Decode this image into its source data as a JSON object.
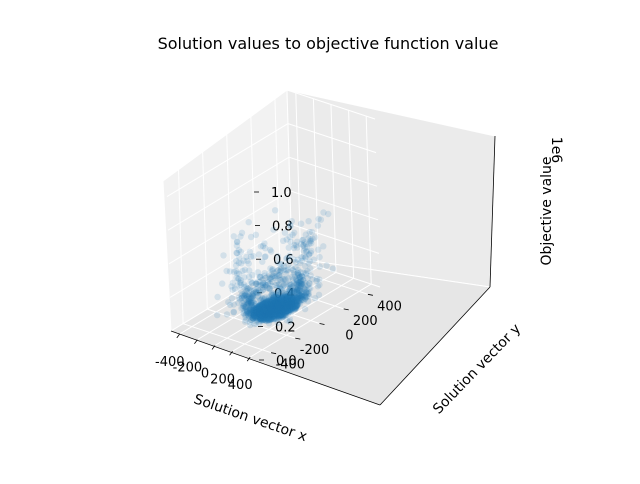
{
  "chart_data": {
    "type": "scatter",
    "projection": "3d",
    "title": "Solution values to objective function value",
    "xlabel": "Solution vector x",
    "ylabel": "Solution vector y",
    "zlabel": "Objective value",
    "z_offset_text": "1e6",
    "xticks": [
      "-400",
      "-200",
      "0",
      "200",
      "400"
    ],
    "yticks": [
      "-400",
      "-200",
      "0",
      "200",
      "400"
    ],
    "zticks": [
      "0.0",
      "0.2",
      "0.4",
      "0.6",
      "0.8",
      "1.0"
    ],
    "xlim": [
      -500,
      500
    ],
    "ylim": [
      -500,
      500
    ],
    "zlim": [
      0,
      1000000
    ],
    "grid": true,
    "marker_color": "#1f77b4",
    "marker_alpha": 0.15,
    "approx_points": 2000,
    "distribution": "approximately normal, centred near (0, 0), most points with objective value near 0 and a sparse tail reaching about 0.45e6",
    "x_spread_std": 110,
    "y_spread_std": 110
  }
}
